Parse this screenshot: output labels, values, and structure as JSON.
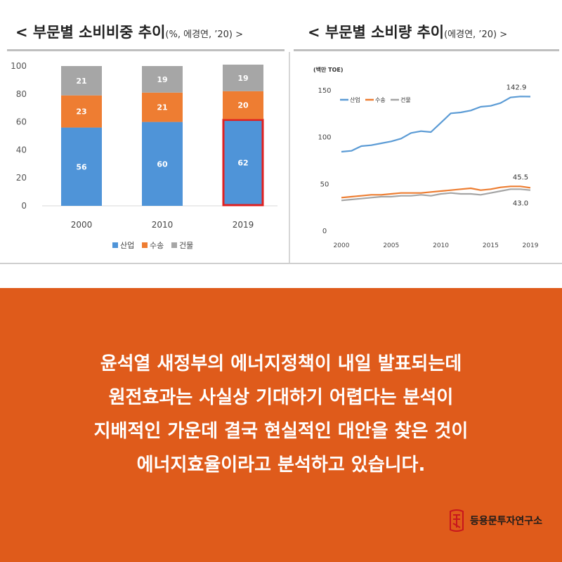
{
  "left_panel": {
    "title": "< 부문별 소비비중 추이",
    "source": "(%, 에경연, ’20) >"
  },
  "right_panel": {
    "title": "< 부문별 소비량 추이",
    "source": "(에경연, ’20) >"
  },
  "chart_data": [
    {
      "type": "bar",
      "stacked": true,
      "categories": [
        "2000",
        "2010",
        "2019"
      ],
      "series": [
        {
          "name": "산업",
          "values": [
            56,
            60,
            62
          ],
          "color": "#4f94d8"
        },
        {
          "name": "수송",
          "values": [
            23,
            21,
            20
          ],
          "color": "#ee7d32"
        },
        {
          "name": "건물",
          "values": [
            21,
            19,
            19
          ],
          "color": "#a6a6a6"
        }
      ],
      "ylim": [
        0,
        100
      ],
      "yticks": [
        "0",
        "20",
        "40",
        "60",
        "80",
        "100"
      ],
      "highlight": {
        "category": "2019",
        "series": "산업",
        "color": "#e02020"
      },
      "legend_position": "bottom",
      "grid": false
    },
    {
      "type": "line",
      "ylabel": "(백만 TOE)",
      "x": [
        2000,
        2001,
        2002,
        2003,
        2004,
        2005,
        2006,
        2007,
        2008,
        2009,
        2010,
        2011,
        2012,
        2013,
        2014,
        2015,
        2016,
        2017,
        2018,
        2019
      ],
      "series": [
        {
          "name": "산업",
          "color": "#5b9bd5",
          "values": [
            84,
            85,
            90,
            91,
            93,
            95,
            98,
            104,
            106,
            105,
            115,
            125,
            126,
            128,
            132,
            133,
            136,
            142,
            143,
            142.9
          ]
        },
        {
          "name": "수송",
          "color": "#ed7d31",
          "values": [
            35,
            36,
            37,
            38,
            38,
            39,
            40,
            40,
            40,
            41,
            42,
            43,
            44,
            45,
            43,
            44,
            46,
            47,
            47,
            45.5
          ]
        },
        {
          "name": "건물",
          "color": "#a5a5a5",
          "values": [
            32,
            33,
            34,
            35,
            36,
            36,
            37,
            37,
            38,
            37,
            39,
            40,
            39,
            39,
            38,
            40,
            42,
            44,
            44,
            43.0
          ]
        }
      ],
      "xticks": [
        "2000",
        "2005",
        "2010",
        "2015",
        "2019"
      ],
      "yticks": [
        "0",
        "50",
        "100",
        "150"
      ],
      "ylim": [
        0,
        155
      ],
      "data_labels": [
        "142.9",
        "45.5",
        "43.0"
      ],
      "legend_position": "top-left",
      "grid": false
    }
  ],
  "body_lines": [
    "윤석열 새정부의 에너지정책이 내일 발표되는데",
    "원전효과는 사실상 기대하기 어렵다는 분석이",
    "지배적인 가운데 결국 현실적인 대안을 찾은 것이",
    "에너지효율이라고 분석하고 있습니다."
  ],
  "brand": {
    "name": "등용문투자연구소",
    "logo_icon": "dragon-gate-seal-icon",
    "logo_color": "#c8161d"
  }
}
